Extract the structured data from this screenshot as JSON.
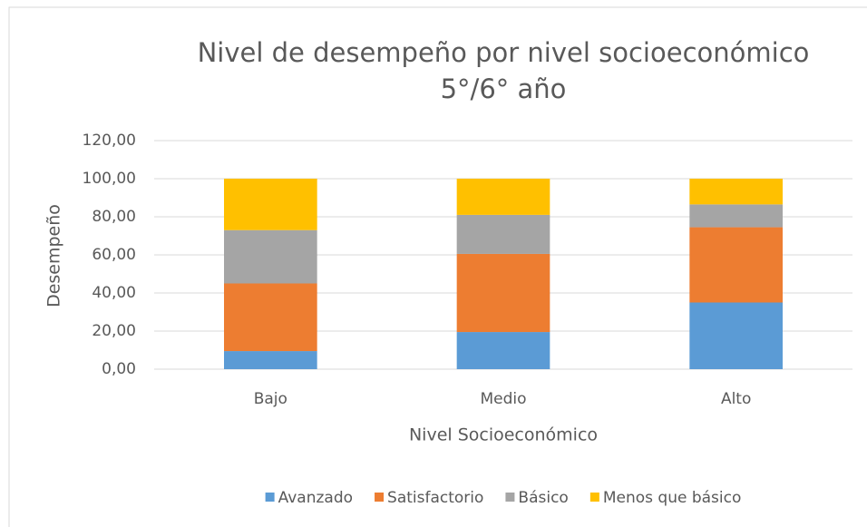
{
  "chart_data": {
    "type": "stacked_bar",
    "title": [
      "Nivel de desempeño por nivel socioeconómico",
      "5°/6° año"
    ],
    "x_label": "Nivel Socioeconómico",
    "y_label": "Desempeño",
    "categories": [
      "Bajo",
      "Medio",
      "Alto"
    ],
    "series": [
      {
        "name": "Avanzado",
        "color": "#5b9bd5",
        "values": [
          9.5,
          19.5,
          35
        ]
      },
      {
        "name": "Satisfactorio",
        "color": "#ed7d31",
        "values": [
          35.5,
          41,
          39.5
        ]
      },
      {
        "name": "Básico",
        "color": "#a5a5a5",
        "values": [
          28,
          20.5,
          12
        ]
      },
      {
        "name": "Menos que básico",
        "color": "#ffc000",
        "values": [
          27,
          19,
          13.5
        ]
      }
    ],
    "ylim": [
      0,
      120
    ],
    "yticks": [
      {
        "value": 0,
        "label": "0,00"
      },
      {
        "value": 20,
        "label": "20,00"
      },
      {
        "value": 40,
        "label": "40,00"
      },
      {
        "value": 60,
        "label": "60,00"
      },
      {
        "value": 80,
        "label": "80,00"
      },
      {
        "value": 100,
        "label": "100,00"
      },
      {
        "value": 120,
        "label": "120,00"
      }
    ],
    "grid": true,
    "legend": "bottom"
  }
}
